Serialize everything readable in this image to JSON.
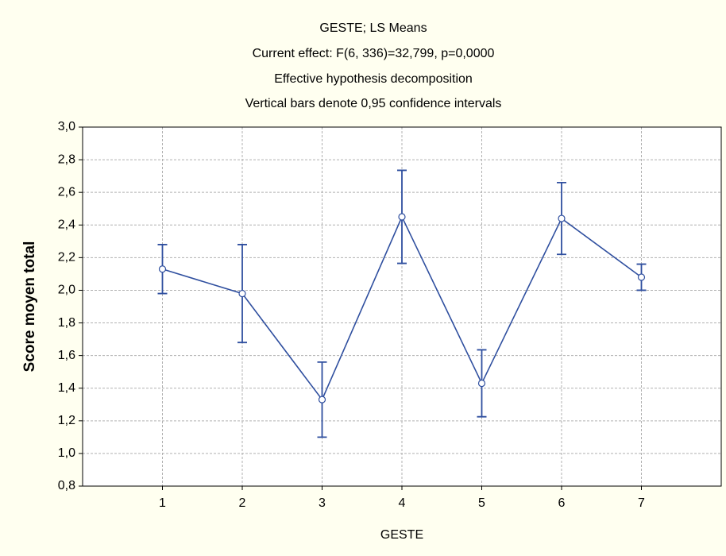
{
  "chart_data": {
    "type": "line",
    "title": "GESTE; LS Means",
    "subtitles": [
      "Current effect: F(6, 336)=32,799, p=0,0000",
      "Effective hypothesis decomposition",
      "Vertical bars denote 0,95 confidence intervals"
    ],
    "x_label": "GESTE",
    "y_label": "Score moyen total",
    "x": [
      1,
      2,
      3,
      4,
      5,
      6,
      7
    ],
    "series": [
      {
        "color": "#2f4f9f",
        "values": [
          2.13,
          1.98,
          1.33,
          2.45,
          1.43,
          2.44,
          2.08
        ],
        "errors": [
          0.15,
          0.3,
          0.23,
          0.285,
          0.205,
          0.22,
          0.08
        ]
      }
    ],
    "xlim": [
      0,
      8
    ],
    "xticks": [
      1,
      2,
      3,
      4,
      5,
      6,
      7
    ],
    "ylim": [
      0.8,
      3.0
    ],
    "yticks": [
      {
        "value": 0.8,
        "label": "0,8"
      },
      {
        "value": 1.0,
        "label": "1,0"
      },
      {
        "value": 1.2,
        "label": "1,2"
      },
      {
        "value": 1.4,
        "label": "1,4"
      },
      {
        "value": 1.6,
        "label": "1,6"
      },
      {
        "value": 1.8,
        "label": "1,8"
      },
      {
        "value": 2.0,
        "label": "2,0"
      },
      {
        "value": 2.2,
        "label": "2,2"
      },
      {
        "value": 2.4,
        "label": "2,4"
      },
      {
        "value": 2.6,
        "label": "2,6"
      },
      {
        "value": 2.8,
        "label": "2,8"
      },
      {
        "value": 3.0,
        "label": "3,0"
      }
    ],
    "grid": true
  }
}
